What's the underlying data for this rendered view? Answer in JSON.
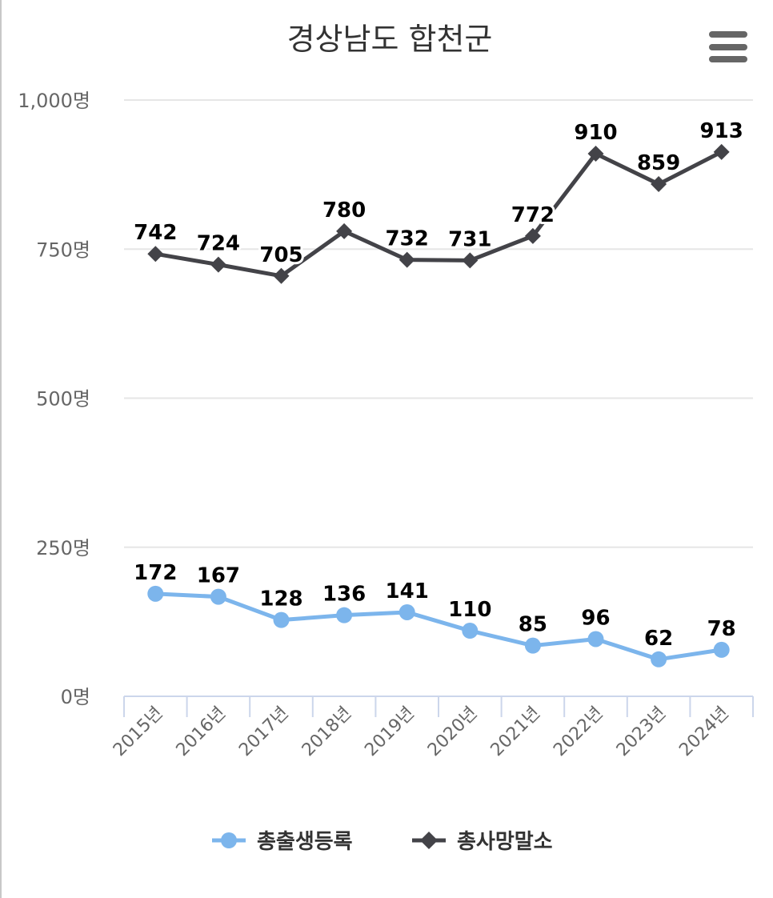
{
  "chart_data": {
    "type": "line",
    "title": "경상남도 합천군",
    "categories": [
      "2015년",
      "2016년",
      "2017년",
      "2018년",
      "2019년",
      "2020년",
      "2021년",
      "2022년",
      "2023년",
      "2024년"
    ],
    "series": [
      {
        "name": "총출생등록",
        "color": "#7cb5ec",
        "marker": "circle",
        "values": [
          172,
          167,
          128,
          136,
          141,
          110,
          85,
          96,
          62,
          78
        ]
      },
      {
        "name": "총사망말소",
        "color": "#434348",
        "marker": "diamond",
        "values": [
          742,
          724,
          705,
          780,
          732,
          731,
          772,
          910,
          859,
          913
        ]
      }
    ],
    "yticks": [
      "0명",
      "250명",
      "500명",
      "750명",
      "1,000명"
    ],
    "ytick_values": [
      0,
      250,
      500,
      750,
      1000
    ],
    "ylim": [
      0,
      1000
    ],
    "xlabel": "",
    "ylabel": "",
    "grid": true,
    "legend": "bottom-center"
  },
  "menu_icon": "hamburger-menu-icon"
}
